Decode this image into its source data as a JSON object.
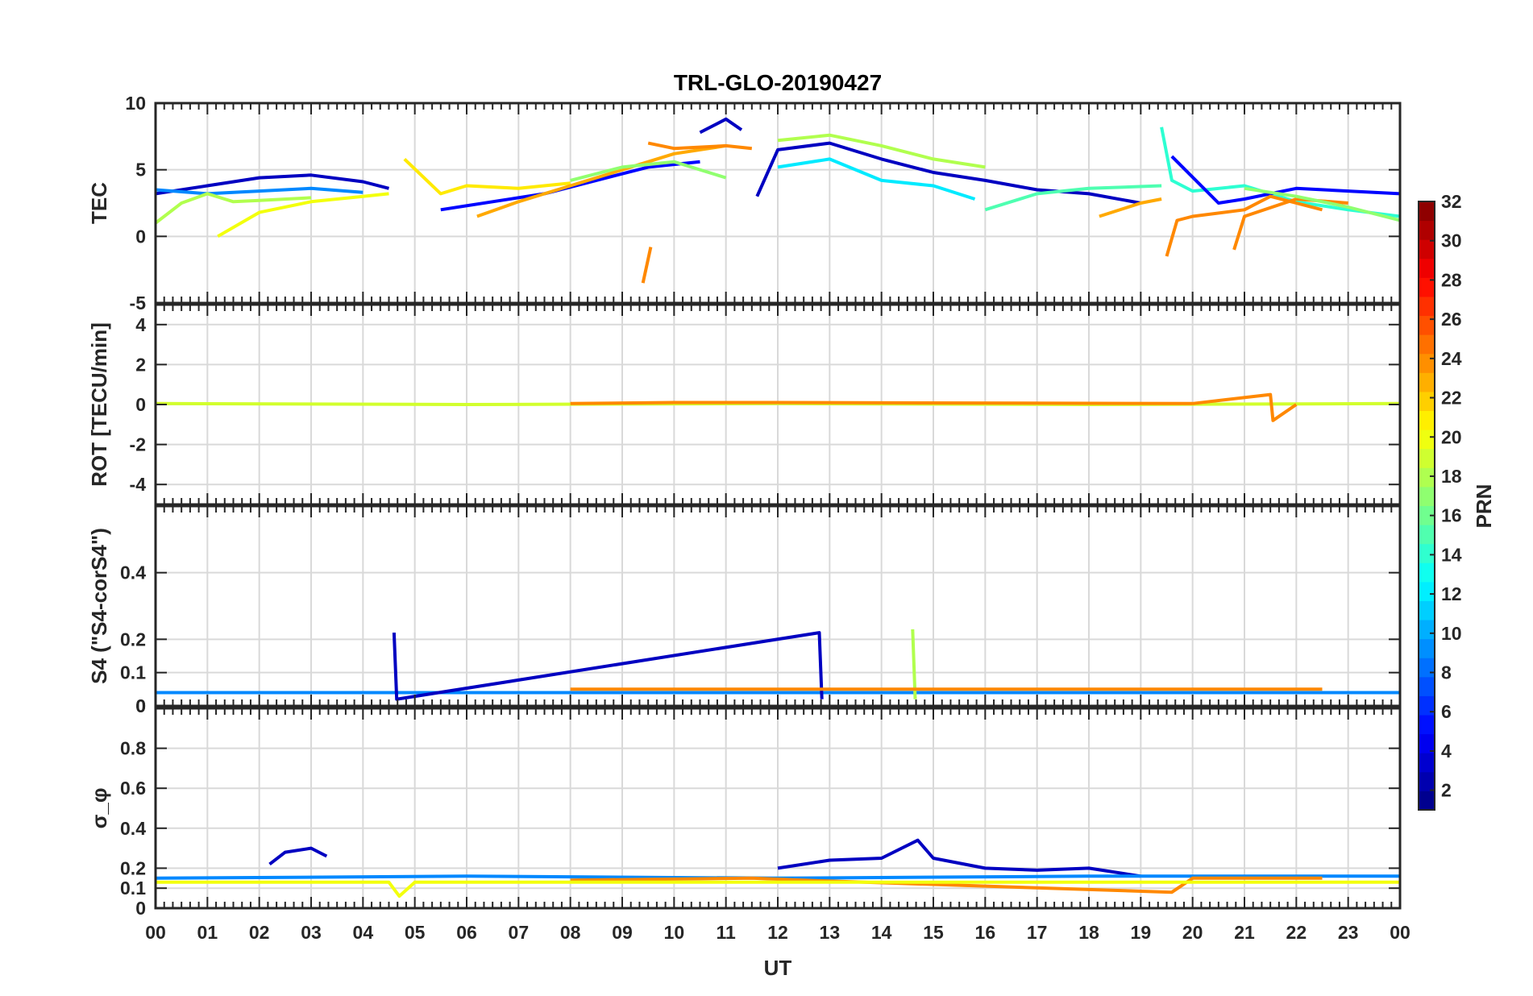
{
  "chart_data": {
    "type": "line",
    "title": "TRL-GLO-20190427",
    "xlabel": "UT",
    "x_ticks": [
      "00",
      "01",
      "02",
      "03",
      "04",
      "05",
      "06",
      "07",
      "08",
      "09",
      "10",
      "11",
      "12",
      "13",
      "14",
      "15",
      "16",
      "17",
      "18",
      "19",
      "20",
      "21",
      "22",
      "23",
      "00"
    ],
    "xlim": [
      0,
      24
    ],
    "grid": true,
    "colorbar": {
      "label": "PRN",
      "range": [
        1,
        32
      ],
      "ticks": [
        "2",
        "4",
        "6",
        "8",
        "10",
        "12",
        "14",
        "16",
        "18",
        "20",
        "22",
        "24",
        "26",
        "28",
        "30",
        "32"
      ],
      "colormap": "jet"
    },
    "panels": [
      {
        "ylabel": "TEC",
        "ylim": [
          -5,
          10
        ],
        "y_ticks": [
          "-5",
          "0",
          "5",
          "10"
        ],
        "series": [
          {
            "prn": 3,
            "x": [
              0,
              1,
              2,
              3,
              4,
              4.5
            ],
            "y": [
              3.2,
              3.8,
              4.4,
              4.6,
              4.1,
              3.6
            ]
          },
          {
            "prn": 9,
            "x": [
              0,
              1,
              2,
              3,
              4
            ],
            "y": [
              3.5,
              3.2,
              3.4,
              3.6,
              3.3
            ]
          },
          {
            "prn": 18,
            "x": [
              0,
              0.5,
              1,
              1.5,
              2,
              3
            ],
            "y": [
              1.0,
              2.5,
              3.2,
              2.6,
              2.7,
              2.9
            ]
          },
          {
            "prn": 20,
            "x": [
              1.2,
              2,
              3,
              4,
              4.5
            ],
            "y": [
              0.0,
              1.8,
              2.6,
              3.0,
              3.2
            ]
          },
          {
            "prn": 21,
            "x": [
              4.8,
              5.5,
              6,
              7,
              8
            ],
            "y": [
              5.8,
              3.2,
              3.8,
              3.6,
              4.0
            ]
          },
          {
            "prn": 5,
            "x": [
              5.5,
              6.5,
              7.5,
              8.5,
              9.5,
              10.5
            ],
            "y": [
              2.0,
              2.6,
              3.2,
              4.2,
              5.2,
              5.6
            ]
          },
          {
            "prn": 23,
            "x": [
              6.2,
              7,
              8,
              9,
              10,
              11
            ],
            "y": [
              1.5,
              2.6,
              3.8,
              5.0,
              6.2,
              6.8
            ]
          },
          {
            "prn": 17,
            "x": [
              8,
              9,
              10,
              11
            ],
            "y": [
              4.2,
              5.2,
              5.6,
              4.4
            ]
          },
          {
            "prn": 3,
            "x": [
              10.5,
              11,
              11.3
            ],
            "y": [
              7.8,
              8.8,
              8.0
            ]
          },
          {
            "prn": 24,
            "x": [
              9.5,
              10,
              11,
              11.5
            ],
            "y": [
              7.0,
              6.6,
              6.8,
              6.6
            ]
          },
          {
            "prn": 24,
            "x": [
              9.4,
              9.55
            ],
            "y": [
              -3.5,
              -0.8
            ]
          },
          {
            "prn": 3,
            "x": [
              11.6,
              12,
              13,
              14,
              15,
              16,
              17,
              18,
              19
            ],
            "y": [
              3.0,
              6.5,
              7.0,
              5.8,
              4.8,
              4.2,
              3.5,
              3.2,
              2.5
            ]
          },
          {
            "prn": 18,
            "x": [
              12,
              13,
              14,
              15,
              16
            ],
            "y": [
              7.2,
              7.6,
              6.8,
              5.8,
              5.2
            ]
          },
          {
            "prn": 12,
            "x": [
              12,
              13,
              14,
              15,
              15.8
            ],
            "y": [
              5.2,
              5.8,
              4.2,
              3.8,
              2.8
            ]
          },
          {
            "prn": 15,
            "x": [
              16,
              17,
              18,
              19.4
            ],
            "y": [
              2.0,
              3.2,
              3.6,
              3.8
            ]
          },
          {
            "prn": 23,
            "x": [
              18.2,
              19,
              19.4
            ],
            "y": [
              1.5,
              2.5,
              2.8
            ]
          },
          {
            "prn": 14,
            "x": [
              19.4,
              19.6,
              20,
              21,
              22,
              23,
              24
            ],
            "y": [
              8.2,
              4.2,
              3.4,
              3.8,
              2.6,
              2.0,
              1.5
            ]
          },
          {
            "prn": 5,
            "x": [
              19.6,
              20.5,
              21,
              22,
              23,
              24
            ],
            "y": [
              6.0,
              2.5,
              2.8,
              3.6,
              3.4,
              3.2
            ]
          },
          {
            "prn": 24,
            "x": [
              19.5,
              19.7,
              20,
              21,
              21.5,
              22,
              22.5
            ],
            "y": [
              -1.5,
              1.2,
              1.5,
              2.0,
              3.0,
              2.5,
              2.0
            ]
          },
          {
            "prn": 24,
            "x": [
              20.8,
              21,
              22,
              23
            ],
            "y": [
              -1.0,
              1.5,
              2.8,
              2.5
            ]
          },
          {
            "prn": 17,
            "x": [
              21,
              22,
              23,
              24
            ],
            "y": [
              3.6,
              3.0,
              2.2,
              1.2
            ]
          }
        ]
      },
      {
        "ylabel": "ROT [TECU/min]",
        "ylim": [
          -5,
          5
        ],
        "y_ticks": [
          "-4",
          "-2",
          "0",
          "2",
          "4"
        ],
        "series": [
          {
            "prn": 19,
            "x": [
              0,
              6,
              12,
              18,
              24
            ],
            "y": [
              0.05,
              0,
              0.05,
              0,
              0.05
            ]
          },
          {
            "prn": 24,
            "x": [
              8,
              10,
              12,
              20,
              21.5,
              21.55,
              22
            ],
            "y": [
              0.05,
              0.1,
              0.1,
              0.05,
              0.5,
              -0.8,
              0
            ]
          }
        ]
      },
      {
        "ylabel": "S4 (\"S4-corS4\")",
        "ylim": [
          0,
          0.6
        ],
        "y_ticks": [
          "0",
          "0",
          "0.1",
          "0.2",
          "0.4"
        ],
        "series": [
          {
            "prn": 9,
            "x": [
              0,
              24
            ],
            "y": [
              0.04,
              0.04
            ]
          },
          {
            "prn": 3,
            "x": [
              4.6,
              4.65,
              12.8,
              12.85
            ],
            "y": [
              0.22,
              0.02,
              0.22,
              0.02
            ]
          },
          {
            "prn": 18,
            "x": [
              14.6,
              14.65
            ],
            "y": [
              0.23,
              0.02
            ]
          },
          {
            "prn": 24,
            "x": [
              8,
              12,
              20,
              22.5
            ],
            "y": [
              0.05,
              0.05,
              0.05,
              0.05
            ]
          }
        ]
      },
      {
        "ylabel": "σ_φ",
        "ylim": [
          0,
          1
        ],
        "y_ticks": [
          "0",
          "0.1",
          "0.2",
          "0.4",
          "0.6",
          "0.8"
        ],
        "series": [
          {
            "prn": 3,
            "x": [
              2.2,
              2.5,
              3,
              3.3
            ],
            "y": [
              0.22,
              0.28,
              0.3,
              0.26
            ]
          },
          {
            "prn": 3,
            "x": [
              12,
              13,
              14,
              14.7,
              15,
              16,
              17,
              18,
              19
            ],
            "y": [
              0.2,
              0.24,
              0.25,
              0.34,
              0.25,
              0.2,
              0.19,
              0.2,
              0.16
            ]
          },
          {
            "prn": 9,
            "x": [
              0,
              6,
              12,
              18,
              24
            ],
            "y": [
              0.15,
              0.16,
              0.15,
              0.16,
              0.16
            ]
          },
          {
            "prn": 24,
            "x": [
              8,
              11.5,
              12.5,
              19.6,
              20,
              22.5
            ],
            "y": [
              0.14,
              0.15,
              0.14,
              0.08,
              0.15,
              0.15
            ]
          },
          {
            "prn": 20,
            "x": [
              0,
              4.5,
              4.7,
              5,
              12,
              24
            ],
            "y": [
              0.13,
              0.13,
              0.06,
              0.13,
              0.13,
              0.13
            ]
          }
        ]
      }
    ]
  }
}
